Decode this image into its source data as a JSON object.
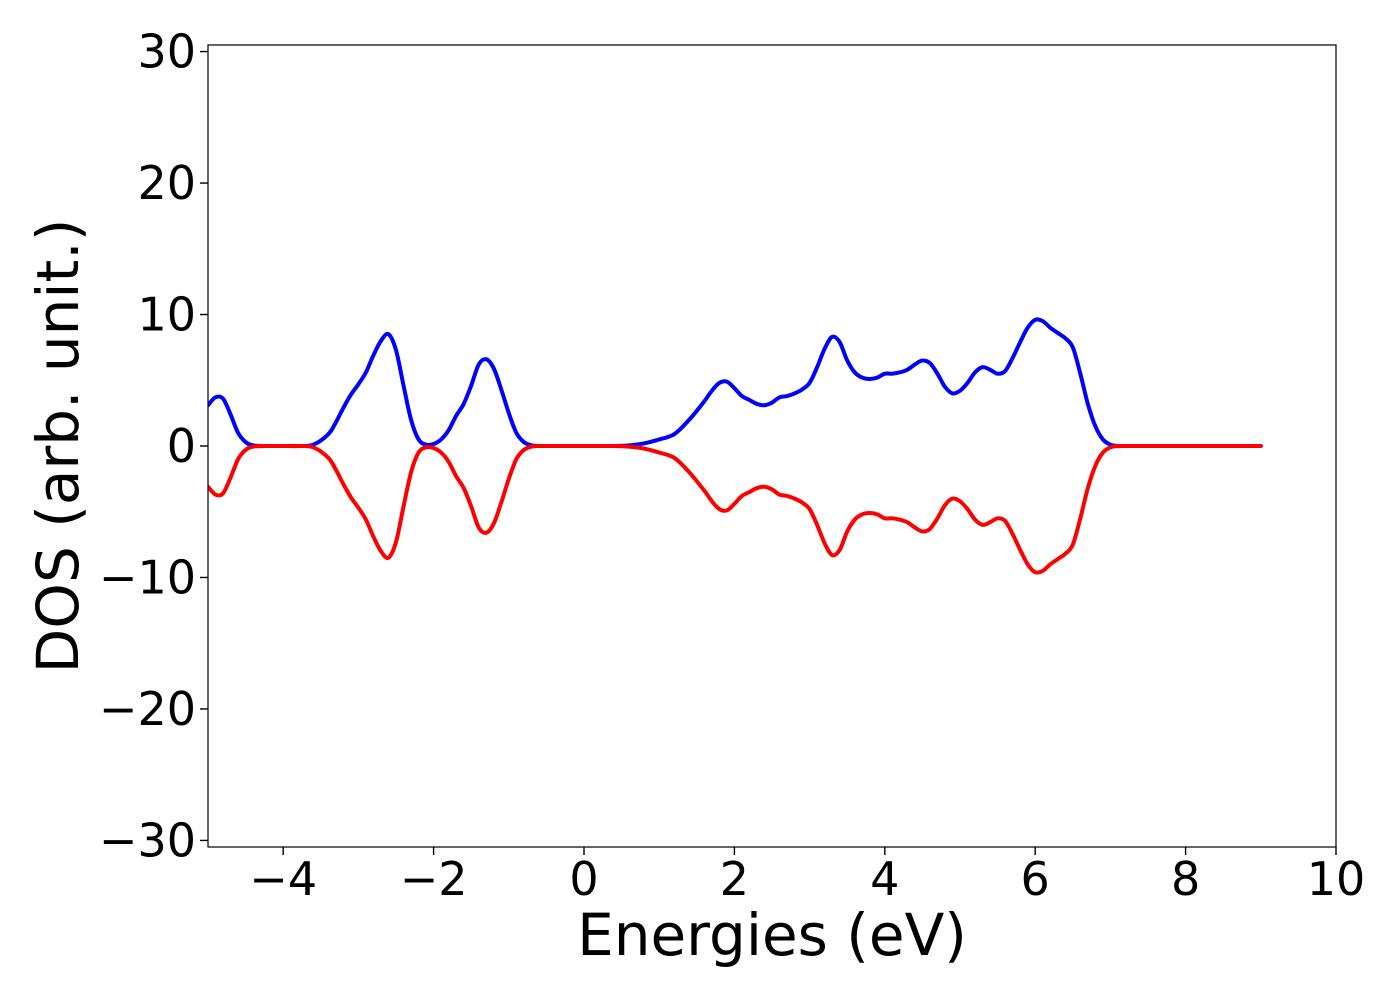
{
  "chart_data": {
    "type": "line",
    "title": "",
    "xlabel": "Energies (eV)",
    "ylabel": "DOS (arb. unit.)",
    "xlim": [
      -5,
      10
    ],
    "ylim": [
      -30.5,
      30.5
    ],
    "xticks": [
      -4,
      -2,
      0,
      2,
      4,
      6,
      8,
      10
    ],
    "yticks": [
      -30,
      -20,
      -10,
      0,
      10,
      20,
      30
    ],
    "xtick_labels": [
      "−4",
      "−2",
      "0",
      "2",
      "4",
      "6",
      "8",
      "10"
    ],
    "ytick_labels": [
      "−30",
      "−20",
      "−10",
      "0",
      "10",
      "20",
      "30"
    ],
    "grid": false,
    "legend": "none",
    "series": [
      {
        "color": "#0000ff",
        "x": [
          -5.0,
          -4.9,
          -4.8,
          -4.7,
          -4.6,
          -4.5,
          -4.4,
          -4.2,
          -4.0,
          -3.8,
          -3.6,
          -3.4,
          -3.3,
          -3.2,
          -3.1,
          -3.0,
          -2.9,
          -2.8,
          -2.7,
          -2.6,
          -2.5,
          -2.4,
          -2.3,
          -2.2,
          -2.1,
          -2.0,
          -1.9,
          -1.8,
          -1.7,
          -1.6,
          -1.5,
          -1.4,
          -1.3,
          -1.2,
          -1.1,
          -1.0,
          -0.9,
          -0.8,
          -0.7,
          -0.6,
          -0.5,
          -0.4,
          -0.2,
          0.0,
          0.2,
          0.4,
          0.6,
          0.8,
          1.0,
          1.2,
          1.4,
          1.6,
          1.7,
          1.8,
          1.9,
          2.0,
          2.1,
          2.2,
          2.3,
          2.4,
          2.5,
          2.6,
          2.7,
          2.8,
          2.9,
          3.0,
          3.1,
          3.2,
          3.3,
          3.4,
          3.5,
          3.6,
          3.7,
          3.8,
          3.9,
          4.0,
          4.1,
          4.2,
          4.3,
          4.4,
          4.5,
          4.6,
          4.7,
          4.8,
          4.9,
          5.0,
          5.1,
          5.2,
          5.3,
          5.4,
          5.5,
          5.6,
          5.7,
          5.8,
          5.9,
          6.0,
          6.1,
          6.2,
          6.3,
          6.4,
          6.5,
          6.6,
          6.7,
          6.8,
          6.9,
          7.0,
          7.1,
          7.2,
          7.4,
          7.6,
          8.0,
          8.5,
          9.0
        ],
        "y": [
          3.1,
          3.7,
          3.6,
          2.4,
          1.0,
          0.3,
          0.05,
          0.0,
          0.0,
          0.0,
          0.1,
          0.9,
          1.8,
          2.9,
          3.9,
          4.7,
          5.6,
          6.9,
          8.0,
          8.5,
          7.3,
          4.6,
          2.0,
          0.5,
          0.1,
          0.15,
          0.5,
          1.2,
          2.3,
          3.2,
          4.6,
          6.2,
          6.6,
          5.9,
          4.3,
          2.5,
          1.0,
          0.3,
          0.05,
          0.0,
          0.0,
          0.0,
          0.0,
          0.0,
          0.0,
          0.0,
          0.05,
          0.2,
          0.5,
          0.9,
          2.0,
          3.4,
          4.2,
          4.8,
          4.9,
          4.4,
          3.8,
          3.5,
          3.2,
          3.1,
          3.3,
          3.7,
          3.8,
          4.0,
          4.3,
          4.8,
          6.0,
          7.4,
          8.3,
          7.9,
          6.5,
          5.6,
          5.2,
          5.1,
          5.2,
          5.5,
          5.5,
          5.6,
          5.8,
          6.2,
          6.5,
          6.3,
          5.5,
          4.5,
          4.0,
          4.2,
          4.8,
          5.6,
          6.0,
          5.8,
          5.5,
          5.7,
          6.7,
          7.9,
          9.0,
          9.6,
          9.5,
          9.0,
          8.6,
          8.2,
          7.5,
          5.5,
          3.2,
          1.5,
          0.5,
          0.1,
          0.0,
          0.0,
          0.0,
          0.0,
          0.0,
          0.0,
          0.0
        ]
      },
      {
        "color": "#ff0000",
        "x": [
          -5.0,
          -4.9,
          -4.8,
          -4.7,
          -4.6,
          -4.5,
          -4.4,
          -4.2,
          -4.0,
          -3.8,
          -3.6,
          -3.4,
          -3.3,
          -3.2,
          -3.1,
          -3.0,
          -2.9,
          -2.8,
          -2.7,
          -2.6,
          -2.5,
          -2.4,
          -2.3,
          -2.2,
          -2.1,
          -2.0,
          -1.9,
          -1.8,
          -1.7,
          -1.6,
          -1.5,
          -1.4,
          -1.3,
          -1.2,
          -1.1,
          -1.0,
          -0.9,
          -0.8,
          -0.7,
          -0.6,
          -0.5,
          -0.4,
          -0.2,
          0.0,
          0.2,
          0.4,
          0.6,
          0.8,
          1.0,
          1.2,
          1.4,
          1.6,
          1.7,
          1.8,
          1.9,
          2.0,
          2.1,
          2.2,
          2.3,
          2.4,
          2.5,
          2.6,
          2.7,
          2.8,
          2.9,
          3.0,
          3.1,
          3.2,
          3.3,
          3.4,
          3.5,
          3.6,
          3.7,
          3.8,
          3.9,
          4.0,
          4.1,
          4.2,
          4.3,
          4.4,
          4.5,
          4.6,
          4.7,
          4.8,
          4.9,
          5.0,
          5.1,
          5.2,
          5.3,
          5.4,
          5.5,
          5.6,
          5.7,
          5.8,
          5.9,
          6.0,
          6.1,
          6.2,
          6.3,
          6.4,
          6.5,
          6.6,
          6.7,
          6.8,
          6.9,
          7.0,
          7.1,
          7.2,
          7.4,
          7.6,
          8.0,
          8.5,
          9.0
        ],
        "y": [
          -3.1,
          -3.7,
          -3.6,
          -2.4,
          -1.0,
          -0.3,
          -0.05,
          0.0,
          0.0,
          0.0,
          -0.1,
          -0.9,
          -1.8,
          -2.9,
          -3.9,
          -4.7,
          -5.6,
          -6.9,
          -8.0,
          -8.5,
          -7.3,
          -4.6,
          -2.0,
          -0.5,
          -0.1,
          -0.15,
          -0.5,
          -1.2,
          -2.3,
          -3.2,
          -4.6,
          -6.2,
          -6.6,
          -5.9,
          -4.3,
          -2.5,
          -1.0,
          -0.3,
          -0.05,
          0.0,
          0.0,
          0.0,
          0.0,
          0.0,
          0.0,
          0.0,
          -0.05,
          -0.2,
          -0.5,
          -0.9,
          -2.0,
          -3.4,
          -4.2,
          -4.8,
          -4.9,
          -4.4,
          -3.8,
          -3.5,
          -3.2,
          -3.1,
          -3.3,
          -3.7,
          -3.8,
          -4.0,
          -4.3,
          -4.8,
          -6.0,
          -7.4,
          -8.3,
          -7.9,
          -6.5,
          -5.6,
          -5.2,
          -5.1,
          -5.2,
          -5.5,
          -5.5,
          -5.6,
          -5.8,
          -6.2,
          -6.5,
          -6.3,
          -5.5,
          -4.5,
          -4.0,
          -4.2,
          -4.8,
          -5.6,
          -6.0,
          -5.8,
          -5.5,
          -5.7,
          -6.7,
          -7.9,
          -9.0,
          -9.6,
          -9.5,
          -9.0,
          -8.6,
          -8.2,
          -7.5,
          -5.5,
          -3.2,
          -1.5,
          -0.5,
          -0.1,
          0.0,
          0.0,
          0.0,
          0.0,
          0.0,
          0.0,
          0.0
        ]
      }
    ]
  }
}
